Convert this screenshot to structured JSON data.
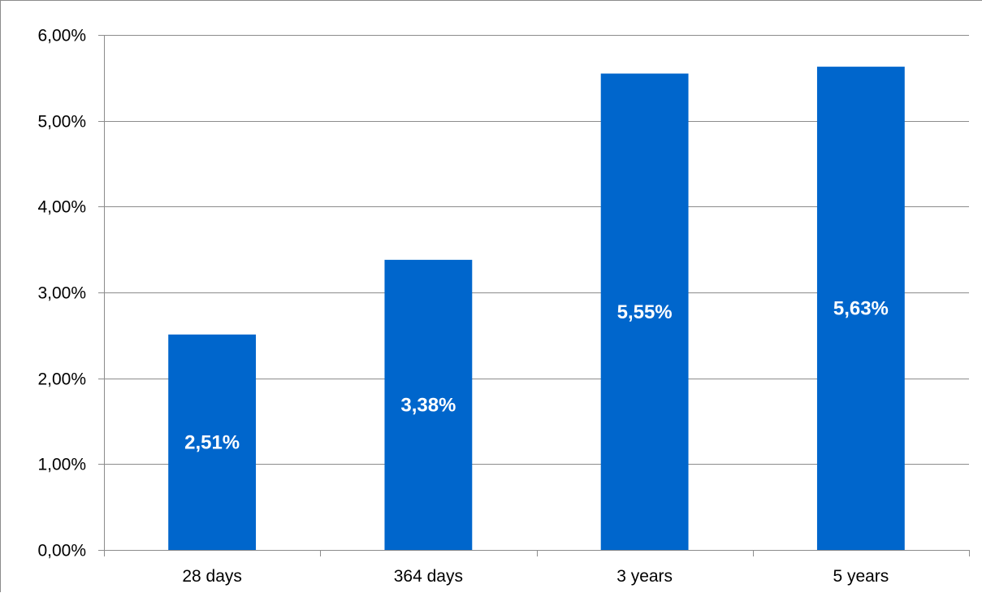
{
  "chart_data": {
    "type": "bar",
    "categories": [
      "28 days",
      "364 days",
      "3 years",
      "5 years"
    ],
    "values": [
      2.51,
      3.38,
      5.55,
      5.63
    ],
    "data_labels": [
      "2,51%",
      "3,38%",
      "5,55%",
      "5,63%"
    ],
    "title": "",
    "xlabel": "",
    "ylabel": "",
    "ylim": [
      0,
      6
    ],
    "yticks": [
      0,
      1,
      2,
      3,
      4,
      5,
      6
    ],
    "ytick_labels": [
      "0,00%",
      "1,00%",
      "2,00%",
      "3,00%",
      "4,00%",
      "5,00%",
      "6,00%"
    ],
    "grid": true,
    "legend": "none",
    "bar_color": "#0066CC",
    "gridline_color": "#8C8C8C"
  }
}
